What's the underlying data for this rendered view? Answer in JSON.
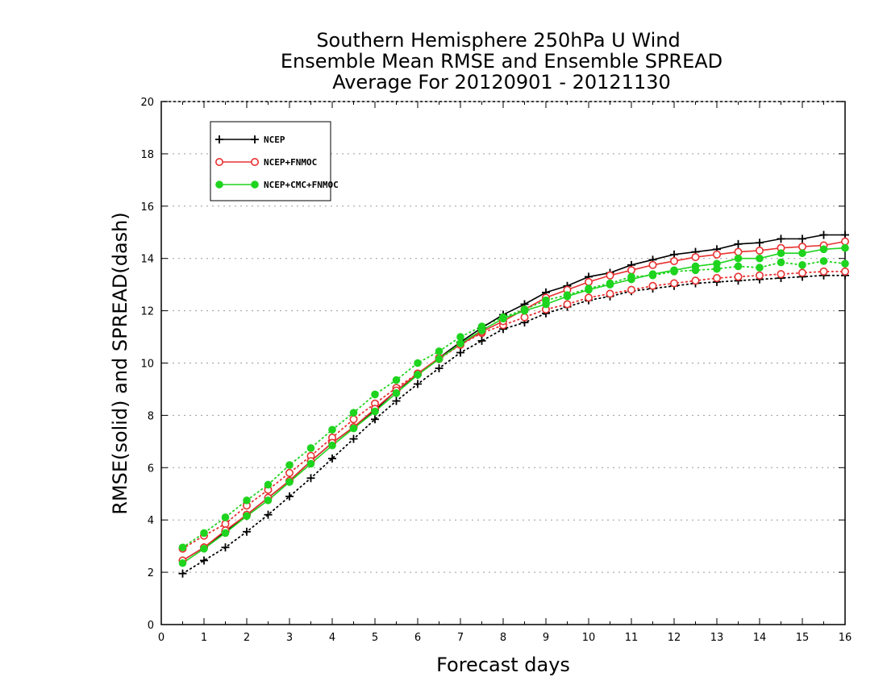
{
  "chart_data": {
    "type": "line",
    "title_lines": [
      "Southern Hemisphere 250hPa U Wind",
      "Ensemble Mean RMSE and Ensemble SPREAD",
      "Average For 20120901 - 20121130"
    ],
    "xlabel": "Forecast days",
    "ylabel": "RMSE(solid) and SPREAD(dash)",
    "xlim": [
      0,
      16
    ],
    "ylim": [
      0,
      20
    ],
    "xticks": [
      0,
      1,
      2,
      3,
      4,
      5,
      6,
      7,
      8,
      9,
      10,
      11,
      12,
      13,
      14,
      15,
      16
    ],
    "yticks": [
      0,
      2,
      4,
      6,
      8,
      10,
      12,
      14,
      16,
      18,
      20
    ],
    "grid": true,
    "legend_position": "top-left",
    "x": [
      0.5,
      1,
      1.5,
      2,
      2.5,
      3,
      3.5,
      4,
      4.5,
      5,
      5.5,
      6,
      6.5,
      7,
      7.5,
      8,
      8.5,
      9,
      9.5,
      10,
      10.5,
      11,
      11.5,
      12,
      12.5,
      13,
      13.5,
      14,
      14.5,
      15,
      15.5,
      16
    ],
    "series": [
      {
        "name": "NCEP",
        "color": "#000000",
        "marker": "plus",
        "rmse": [
          2.45,
          2.95,
          3.55,
          4.2,
          4.85,
          5.5,
          6.25,
          6.95,
          7.55,
          8.2,
          8.95,
          9.55,
          10.2,
          10.8,
          11.35,
          11.85,
          12.25,
          12.7,
          12.95,
          13.3,
          13.45,
          13.75,
          13.95,
          14.15,
          14.25,
          14.35,
          14.55,
          14.6,
          14.75,
          14.75,
          14.9,
          14.9
        ],
        "spread": [
          1.95,
          2.45,
          2.95,
          3.55,
          4.2,
          4.9,
          5.6,
          6.35,
          7.1,
          7.85,
          8.55,
          9.2,
          9.8,
          10.4,
          10.85,
          11.3,
          11.55,
          11.9,
          12.15,
          12.4,
          12.55,
          12.75,
          12.85,
          12.95,
          13.05,
          13.1,
          13.15,
          13.2,
          13.25,
          13.3,
          13.35,
          13.35
        ]
      },
      {
        "name": "NCEP+FNMOC",
        "color": "#e83030",
        "marker": "open-circle",
        "rmse": [
          2.45,
          2.95,
          3.6,
          4.2,
          4.85,
          5.5,
          6.25,
          6.95,
          7.55,
          8.25,
          8.95,
          9.6,
          10.2,
          10.7,
          11.2,
          11.6,
          12.05,
          12.5,
          12.8,
          13.1,
          13.35,
          13.55,
          13.75,
          13.9,
          14.05,
          14.15,
          14.25,
          14.3,
          14.4,
          14.45,
          14.5,
          14.65
        ],
        "spread": [
          2.9,
          3.4,
          3.85,
          4.55,
          5.15,
          5.8,
          6.45,
          7.15,
          7.85,
          8.45,
          9.05,
          9.6,
          10.15,
          10.7,
          11.15,
          11.45,
          11.75,
          12.05,
          12.25,
          12.5,
          12.65,
          12.8,
          12.95,
          13.05,
          13.15,
          13.25,
          13.3,
          13.35,
          13.4,
          13.45,
          13.5,
          13.5
        ]
      },
      {
        "name": "NCEP+CMC+FNMOC",
        "color": "#1ed41e",
        "marker": "filled-circle",
        "rmse": [
          2.35,
          2.9,
          3.5,
          4.15,
          4.75,
          5.45,
          6.15,
          6.85,
          7.5,
          8.15,
          8.85,
          9.55,
          10.15,
          10.75,
          11.25,
          11.7,
          12.0,
          12.25,
          12.55,
          12.8,
          13.0,
          13.2,
          13.4,
          13.55,
          13.7,
          13.8,
          14.0,
          14.0,
          14.2,
          14.2,
          14.35,
          14.4
        ],
        "spread": [
          2.95,
          3.5,
          4.1,
          4.75,
          5.35,
          6.1,
          6.75,
          7.45,
          8.1,
          8.8,
          9.35,
          10.0,
          10.45,
          11.0,
          11.4,
          11.75,
          12.05,
          12.4,
          12.6,
          12.85,
          13.05,
          13.3,
          13.35,
          13.5,
          13.55,
          13.6,
          13.7,
          13.65,
          13.85,
          13.75,
          13.9,
          13.8
        ]
      }
    ]
  }
}
